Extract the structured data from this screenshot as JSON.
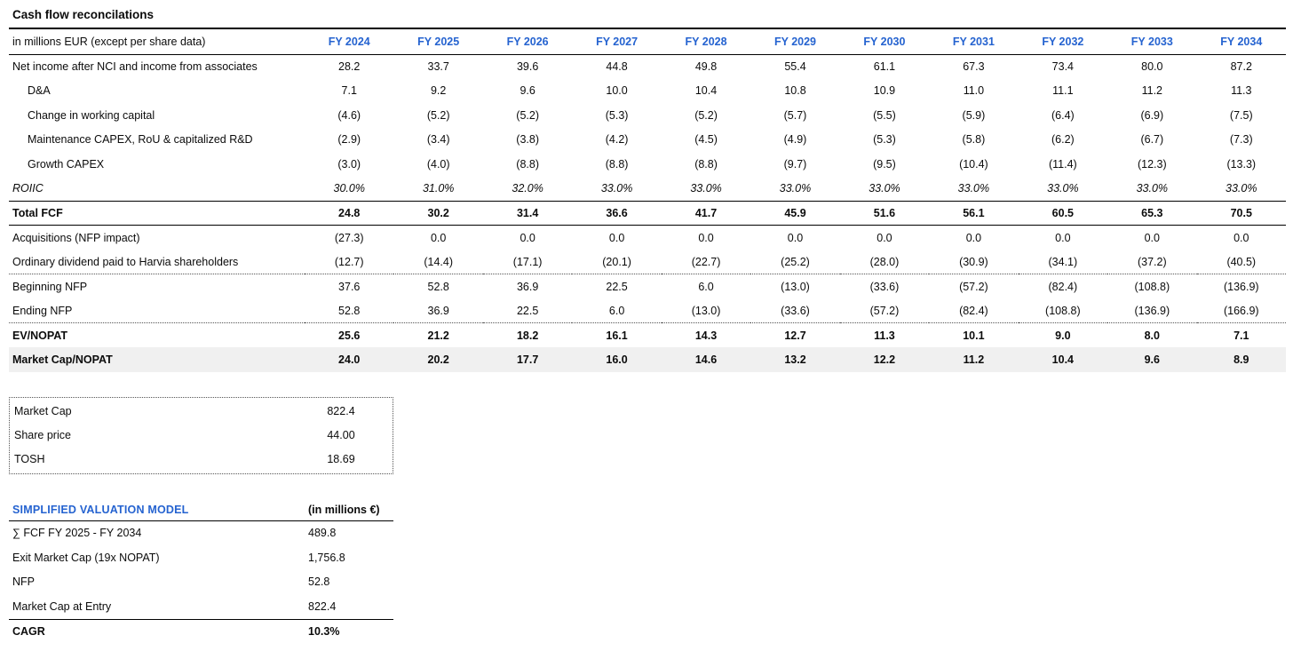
{
  "title": "Cash flow reconcilations",
  "colors": {
    "accent_blue": "#2563d0",
    "shaded_row_bg": "#f0f0f0"
  },
  "main_table": {
    "unit_label": "in millions EUR (except per share data)",
    "columns": [
      "FY 2024",
      "FY 2025",
      "FY 2026",
      "FY 2027",
      "FY 2028",
      "FY 2029",
      "FY 2030",
      "FY 2031",
      "FY 2032",
      "FY 2033",
      "FY 2034"
    ],
    "rows": [
      {
        "label": "Net income after NCI and income from associates",
        "indent": false,
        "classes": "",
        "values": [
          "28.2",
          "33.7",
          "39.6",
          "44.8",
          "49.8",
          "55.4",
          "61.1",
          "67.3",
          "73.4",
          "80.0",
          "87.2"
        ]
      },
      {
        "label": "D&A",
        "indent": true,
        "classes": "",
        "values": [
          "7.1",
          "9.2",
          "9.6",
          "10.0",
          "10.4",
          "10.8",
          "10.9",
          "11.0",
          "11.1",
          "11.2",
          "11.3"
        ]
      },
      {
        "label": "Change in working capital",
        "indent": true,
        "classes": "",
        "values": [
          "(4.6)",
          "(5.2)",
          "(5.2)",
          "(5.3)",
          "(5.2)",
          "(5.7)",
          "(5.5)",
          "(5.9)",
          "(6.4)",
          "(6.9)",
          "(7.5)"
        ]
      },
      {
        "label": "Maintenance CAPEX, RoU & capitalized R&D",
        "indent": true,
        "classes": "",
        "values": [
          "(2.9)",
          "(3.4)",
          "(3.8)",
          "(4.2)",
          "(4.5)",
          "(4.9)",
          "(5.3)",
          "(5.8)",
          "(6.2)",
          "(6.7)",
          "(7.3)"
        ]
      },
      {
        "label": "Growth CAPEX",
        "indent": true,
        "classes": "",
        "values": [
          "(3.0)",
          "(4.0)",
          "(8.8)",
          "(8.8)",
          "(8.8)",
          "(9.7)",
          "(9.5)",
          "(10.4)",
          "(11.4)",
          "(12.3)",
          "(13.3)"
        ]
      },
      {
        "label": "ROIIC",
        "indent": false,
        "classes": "italic",
        "values": [
          "30.0%",
          "31.0%",
          "32.0%",
          "33.0%",
          "33.0%",
          "33.0%",
          "33.0%",
          "33.0%",
          "33.0%",
          "33.0%",
          "33.0%"
        ]
      },
      {
        "label": "Total FCF",
        "indent": false,
        "classes": "bold bt-solid bb-solid",
        "values": [
          "24.8",
          "30.2",
          "31.4",
          "36.6",
          "41.7",
          "45.9",
          "51.6",
          "56.1",
          "60.5",
          "65.3",
          "70.5"
        ]
      },
      {
        "label": "Acquisitions (NFP impact)",
        "indent": false,
        "classes": "",
        "values": [
          "(27.3)",
          "0.0",
          "0.0",
          "0.0",
          "0.0",
          "0.0",
          "0.0",
          "0.0",
          "0.0",
          "0.0",
          "0.0"
        ]
      },
      {
        "label": "Ordinary dividend paid to Harvia shareholders",
        "indent": false,
        "classes": "",
        "values": [
          "(12.7)",
          "(14.4)",
          "(17.1)",
          "(20.1)",
          "(22.7)",
          "(25.2)",
          "(28.0)",
          "(30.9)",
          "(34.1)",
          "(37.2)",
          "(40.5)"
        ]
      },
      {
        "label": "Beginning NFP",
        "indent": false,
        "classes": "bt-dotted",
        "values": [
          "37.6",
          "52.8",
          "36.9",
          "22.5",
          "6.0",
          "(13.0)",
          "(33.6)",
          "(57.2)",
          "(82.4)",
          "(108.8)",
          "(136.9)"
        ]
      },
      {
        "label": "Ending NFP",
        "indent": false,
        "classes": "",
        "values": [
          "52.8",
          "36.9",
          "22.5",
          "6.0",
          "(13.0)",
          "(33.6)",
          "(57.2)",
          "(82.4)",
          "(108.8)",
          "(136.9)",
          "(166.9)"
        ]
      },
      {
        "label": "EV/NOPAT",
        "indent": false,
        "classes": "bold bt-dotted",
        "values": [
          "25.6",
          "21.2",
          "18.2",
          "16.1",
          "14.3",
          "12.7",
          "11.3",
          "10.1",
          "9.0",
          "8.0",
          "7.1"
        ]
      },
      {
        "label": "Market Cap/NOPAT",
        "indent": false,
        "classes": "bold shaded",
        "values": [
          "24.0",
          "20.2",
          "17.7",
          "16.0",
          "14.6",
          "13.2",
          "12.2",
          "11.2",
          "10.4",
          "9.6",
          "8.9"
        ]
      }
    ]
  },
  "market_cap_box": {
    "rows": [
      {
        "label": "Market Cap",
        "value": "822.4"
      },
      {
        "label": "Share price",
        "value": "44.00"
      },
      {
        "label": "TOSH",
        "value": "18.69"
      }
    ]
  },
  "valuation_model": {
    "title": "SIMPLIFIED VALUATION MODEL",
    "unit_label": "(in millions €)",
    "rows": [
      {
        "label": "∑ FCF FY 2025 - FY 2034",
        "value": "489.8"
      },
      {
        "label": "Exit Market Cap (19x NOPAT)",
        "value": "1,756.8"
      },
      {
        "label": "NFP",
        "value": "52.8"
      },
      {
        "label": "Market Cap at Entry",
        "value": "822.4"
      }
    ],
    "summary_row": {
      "label": "CAGR",
      "value": "10.3%"
    }
  }
}
